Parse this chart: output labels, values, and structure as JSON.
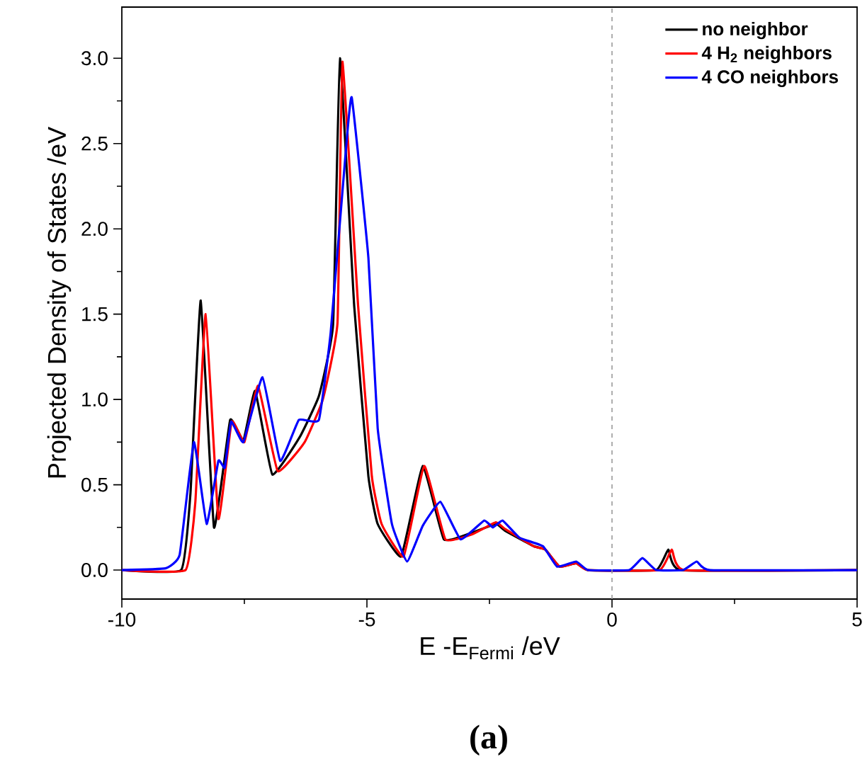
{
  "chart_data": {
    "type": "line",
    "xlabel": "E -E$_{Fermi}$ /eV",
    "ylabel": "Projected Density of States /eV",
    "annotations": [
      "(a)"
    ],
    "xlim": [
      -10,
      5
    ],
    "ylim": [
      -0.17,
      3.3
    ],
    "xticks": [
      -10,
      -5,
      0,
      5
    ],
    "yticks": [
      {
        "value": 0,
        "label": "0.0"
      },
      {
        "value": 0.5,
        "label": "0.5"
      },
      {
        "value": 1,
        "label": "1.0"
      },
      {
        "value": 1.5,
        "label": "1.5"
      },
      {
        "value": 2,
        "label": "2.0"
      },
      {
        "value": 2.5,
        "label": "2.5"
      },
      {
        "value": 3,
        "label": "3.0"
      }
    ],
    "legend": "top right",
    "grid": false,
    "marker": "none",
    "line_style": "solid",
    "ref_lines": [
      {
        "axis": "x",
        "value": 0,
        "color": "#999999",
        "line_style": "dashed"
      }
    ],
    "series": [
      {
        "name": "no neighbor",
        "color": "#000000",
        "x": [
          -10,
          -8.79,
          -8.6,
          -8.39,
          -8.12,
          -7.79,
          -7.52,
          -7.28,
          -6.93,
          -6.37,
          -5.98,
          -5.69,
          -5.55,
          -5.26,
          -4.97,
          -4.78,
          -4.3,
          -3.86,
          -3.43,
          -2.85,
          -2.37,
          -2.18,
          -1.6,
          -1.36,
          -1.07,
          -0.73,
          -0.49,
          0.9,
          1.15,
          1.4,
          5
        ],
        "values": [
          0,
          0,
          0.45,
          1.58,
          0.25,
          0.88,
          0.76,
          1.05,
          0.56,
          0.78,
          1.02,
          1.44,
          3.0,
          1.55,
          0.55,
          0.27,
          0.08,
          0.61,
          0.18,
          0.22,
          0.27,
          0.23,
          0.14,
          0.12,
          0.02,
          0.04,
          0,
          0,
          0.12,
          0,
          0
        ]
      },
      {
        "name": "4 H$_{2}$ neighbors",
        "color": "#ff0000",
        "x": [
          -10,
          -8.7,
          -8.5,
          -8.29,
          -8.03,
          -7.76,
          -7.5,
          -7.22,
          -6.82,
          -6.27,
          -5.9,
          -5.6,
          -5.5,
          -5.18,
          -4.9,
          -4.7,
          -4.25,
          -3.83,
          -3.4,
          -2.85,
          -2.37,
          -2.18,
          -1.6,
          -1.36,
          -1.07,
          -0.73,
          -0.49,
          0.97,
          1.22,
          1.47,
          5
        ],
        "values": [
          0,
          0,
          0.4,
          1.5,
          0.3,
          0.87,
          0.75,
          1.08,
          0.58,
          0.75,
          1.0,
          1.45,
          2.98,
          1.55,
          0.55,
          0.27,
          0.08,
          0.61,
          0.18,
          0.21,
          0.28,
          0.24,
          0.14,
          0.12,
          0.02,
          0.04,
          0,
          0,
          0.12,
          0,
          0
        ]
      },
      {
        "name": "4 CO neighbors",
        "color": "#0000ff",
        "x": [
          -10,
          -9.11,
          -8.82,
          -8.53,
          -8.27,
          -8.03,
          -7.9,
          -7.77,
          -7.52,
          -7.13,
          -6.77,
          -6.39,
          -5.98,
          -5.74,
          -5.45,
          -5.31,
          -4.97,
          -4.78,
          -4.49,
          -4.18,
          -3.86,
          -3.5,
          -3.09,
          -2.61,
          -2.43,
          -2.23,
          -1.89,
          -1.41,
          -1.12,
          -0.73,
          -0.49,
          0.35,
          0.62,
          0.9,
          1.45,
          1.73,
          2.0,
          5
        ],
        "values": [
          0,
          0.01,
          0.09,
          0.75,
          0.27,
          0.64,
          0.6,
          0.87,
          0.75,
          1.13,
          0.64,
          0.88,
          0.88,
          1.39,
          2.39,
          2.77,
          1.83,
          0.83,
          0.27,
          0.05,
          0.26,
          0.4,
          0.18,
          0.29,
          0.25,
          0.29,
          0.19,
          0.14,
          0.02,
          0.05,
          0,
          0,
          0.07,
          0,
          0,
          0.05,
          0,
          0
        ]
      }
    ]
  }
}
